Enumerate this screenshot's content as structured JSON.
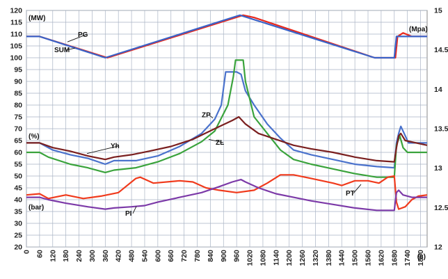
{
  "chart_data": {
    "type": "line",
    "title": "",
    "xlabel": "",
    "x_unit": "(s)",
    "xlim": [
      0,
      1830
    ],
    "x_ticks": [
      "0",
      "60",
      "120",
      "180",
      "240",
      "300",
      "360",
      "420",
      "480",
      "540",
      "600",
      "660",
      "720",
      "780",
      "840",
      "900",
      "960",
      "1020",
      "1080",
      "1140",
      "1200",
      "1260",
      "1320",
      "1380",
      "1440",
      "1500",
      "1560",
      "1620",
      "1680",
      "1740",
      "1800"
    ],
    "y_left": {
      "lim": [
        20,
        120
      ],
      "ticks": [
        "20",
        "25",
        "30",
        "35",
        "40",
        "45",
        "50",
        "55",
        "60",
        "65",
        "70",
        "75",
        "80",
        "85",
        "90",
        "95",
        "100",
        "105",
        "110",
        "115",
        "120"
      ],
      "unit_labels": [
        "(MW)",
        "(%)",
        "(bar)"
      ]
    },
    "y_right": {
      "lim": [
        12,
        15
      ],
      "ticks": [
        "12",
        "12.5",
        "13",
        "13.5",
        "14",
        "14.5",
        "15"
      ],
      "unit_label": "(Mpa)"
    },
    "grid": true,
    "series": [
      {
        "name": "PG",
        "color": "#e8281c",
        "axis": "left",
        "points": [
          [
            0,
            109
          ],
          [
            60,
            109
          ],
          [
            370,
            100
          ],
          [
            990,
            118
          ],
          [
            1040,
            117
          ],
          [
            1590,
            100
          ],
          [
            1685,
            100
          ],
          [
            1695,
            109
          ],
          [
            1720,
            110.5
          ],
          [
            1760,
            109
          ],
          [
            1830,
            109
          ]
        ]
      },
      {
        "name": "SUM",
        "color": "#3a63c8",
        "axis": "left",
        "points": [
          [
            0,
            109
          ],
          [
            60,
            109
          ],
          [
            360,
            100
          ],
          [
            975,
            118
          ],
          [
            1590,
            100
          ],
          [
            1680,
            100
          ],
          [
            1690,
            109
          ],
          [
            1830,
            109
          ]
        ]
      },
      {
        "name": "ZP",
        "color": "#4a72cc",
        "axis": "left",
        "points": [
          [
            0,
            64
          ],
          [
            60,
            64
          ],
          [
            120,
            61
          ],
          [
            200,
            59
          ],
          [
            280,
            57.5
          ],
          [
            360,
            55
          ],
          [
            400,
            56.5
          ],
          [
            500,
            56.5
          ],
          [
            600,
            58.5
          ],
          [
            700,
            62.5
          ],
          [
            800,
            68
          ],
          [
            860,
            74
          ],
          [
            890,
            80
          ],
          [
            910,
            94
          ],
          [
            960,
            94
          ],
          [
            980,
            93
          ],
          [
            1000,
            86
          ],
          [
            1040,
            80
          ],
          [
            1100,
            72
          ],
          [
            1160,
            66
          ],
          [
            1220,
            61
          ],
          [
            1300,
            59
          ],
          [
            1400,
            57
          ],
          [
            1500,
            55
          ],
          [
            1600,
            54
          ],
          [
            1680,
            53.5
          ],
          [
            1690,
            64
          ],
          [
            1700,
            68
          ],
          [
            1710,
            71
          ],
          [
            1725,
            68
          ],
          [
            1745,
            64
          ],
          [
            1830,
            64
          ]
        ]
      },
      {
        "name": "ZL",
        "color": "#3aa33c",
        "axis": "left",
        "points": [
          [
            0,
            60
          ],
          [
            60,
            60
          ],
          [
            100,
            58
          ],
          [
            200,
            55
          ],
          [
            280,
            53.5
          ],
          [
            360,
            51.5
          ],
          [
            400,
            52.5
          ],
          [
            500,
            53.5
          ],
          [
            600,
            56
          ],
          [
            700,
            59.5
          ],
          [
            800,
            64.5
          ],
          [
            860,
            69
          ],
          [
            920,
            80
          ],
          [
            945,
            92
          ],
          [
            955,
            99
          ],
          [
            990,
            99
          ],
          [
            1000,
            90
          ],
          [
            1040,
            75
          ],
          [
            1100,
            68
          ],
          [
            1160,
            61
          ],
          [
            1220,
            57
          ],
          [
            1300,
            55
          ],
          [
            1400,
            53
          ],
          [
            1500,
            51
          ],
          [
            1600,
            49.5
          ],
          [
            1680,
            49.5
          ],
          [
            1690,
            63
          ],
          [
            1705,
            67
          ],
          [
            1720,
            62
          ],
          [
            1740,
            60
          ],
          [
            1830,
            60
          ]
        ]
      },
      {
        "name": "Yh",
        "color": "#7a1f1f",
        "axis": "left",
        "points": [
          [
            0,
            64
          ],
          [
            60,
            64
          ],
          [
            120,
            62
          ],
          [
            200,
            60.5
          ],
          [
            280,
            58.5
          ],
          [
            360,
            57
          ],
          [
            400,
            58
          ],
          [
            480,
            59
          ],
          [
            560,
            60.5
          ],
          [
            660,
            62.5
          ],
          [
            760,
            65.5
          ],
          [
            860,
            70
          ],
          [
            940,
            73.5
          ],
          [
            970,
            75
          ],
          [
            1000,
            72
          ],
          [
            1060,
            68
          ],
          [
            1140,
            65.5
          ],
          [
            1220,
            63
          ],
          [
            1300,
            61.5
          ],
          [
            1400,
            60
          ],
          [
            1500,
            58
          ],
          [
            1600,
            56.5
          ],
          [
            1680,
            56
          ],
          [
            1690,
            62
          ],
          [
            1700,
            67
          ],
          [
            1710,
            68
          ],
          [
            1730,
            65
          ],
          [
            1830,
            63
          ]
        ]
      },
      {
        "name": "PT",
        "color": "#f03a1c",
        "axis": "left",
        "points": [
          [
            0,
            42
          ],
          [
            60,
            42.5
          ],
          [
            100,
            40.5
          ],
          [
            180,
            42
          ],
          [
            260,
            40.5
          ],
          [
            340,
            41.5
          ],
          [
            420,
            43
          ],
          [
            500,
            49
          ],
          [
            520,
            49.5
          ],
          [
            580,
            47
          ],
          [
            700,
            48
          ],
          [
            760,
            47.5
          ],
          [
            820,
            45
          ],
          [
            880,
            44
          ],
          [
            960,
            43
          ],
          [
            1040,
            44
          ],
          [
            1100,
            47
          ],
          [
            1160,
            50.5
          ],
          [
            1220,
            50.5
          ],
          [
            1300,
            49
          ],
          [
            1400,
            47
          ],
          [
            1440,
            46
          ],
          [
            1500,
            48
          ],
          [
            1560,
            48
          ],
          [
            1610,
            47
          ],
          [
            1650,
            49.5
          ],
          [
            1680,
            50
          ],
          [
            1690,
            39
          ],
          [
            1700,
            36
          ],
          [
            1730,
            37
          ],
          [
            1760,
            40
          ],
          [
            1790,
            41.5
          ],
          [
            1830,
            42
          ]
        ]
      },
      {
        "name": "PI",
        "color": "#7c3aa8",
        "axis": "left",
        "points": [
          [
            0,
            41
          ],
          [
            60,
            41
          ],
          [
            100,
            40
          ],
          [
            180,
            38.5
          ],
          [
            280,
            37
          ],
          [
            360,
            36
          ],
          [
            400,
            36.5
          ],
          [
            480,
            37
          ],
          [
            540,
            37.5
          ],
          [
            600,
            39
          ],
          [
            700,
            41
          ],
          [
            800,
            43
          ],
          [
            880,
            45.5
          ],
          [
            940,
            47.5
          ],
          [
            980,
            48.5
          ],
          [
            1000,
            47.5
          ],
          [
            1060,
            45
          ],
          [
            1140,
            42.5
          ],
          [
            1220,
            41
          ],
          [
            1300,
            39.5
          ],
          [
            1400,
            38
          ],
          [
            1500,
            36.5
          ],
          [
            1600,
            35.5
          ],
          [
            1680,
            35.5
          ],
          [
            1690,
            43
          ],
          [
            1700,
            44
          ],
          [
            1720,
            42
          ],
          [
            1760,
            41
          ],
          [
            1830,
            41
          ]
        ]
      }
    ]
  }
}
